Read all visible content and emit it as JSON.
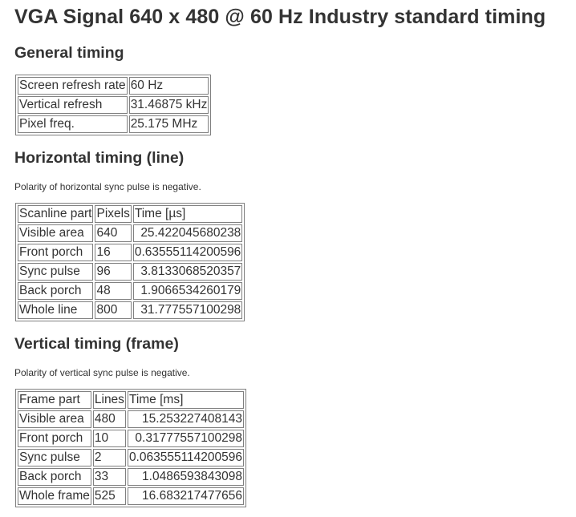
{
  "title": "VGA Signal 640 x 480 @ 60 Hz Industry standard timing",
  "general": {
    "heading": "General timing",
    "rows": [
      {
        "label": "Screen refresh rate",
        "value": "60 Hz"
      },
      {
        "label": "Vertical refresh",
        "value": "31.46875 kHz"
      },
      {
        "label": "Pixel freq.",
        "value": "25.175 MHz"
      }
    ]
  },
  "horizontal": {
    "heading": "Horizontal timing (line)",
    "note": "Polarity of horizontal sync pulse is negative.",
    "headers": [
      "Scanline part",
      "Pixels",
      "Time [µs]"
    ],
    "rows": [
      {
        "part": "Visible area",
        "count": "640",
        "time": "25.422045680238"
      },
      {
        "part": "Front porch",
        "count": "16",
        "time": "0.63555114200596"
      },
      {
        "part": "Sync pulse",
        "count": "96",
        "time": "3.8133068520357"
      },
      {
        "part": "Back porch",
        "count": "48",
        "time": "1.9066534260179"
      },
      {
        "part": "Whole line",
        "count": "800",
        "time": "31.777557100298"
      }
    ]
  },
  "vertical": {
    "heading": "Vertical timing (frame)",
    "note": "Polarity of vertical sync pulse is negative.",
    "headers": [
      "Frame part",
      "Lines",
      "Time [ms]"
    ],
    "rows": [
      {
        "part": "Visible area",
        "count": "480",
        "time": "15.253227408143"
      },
      {
        "part": "Front porch",
        "count": "10",
        "time": "0.31777557100298"
      },
      {
        "part": "Sync pulse",
        "count": "2",
        "time": "0.063555114200596"
      },
      {
        "part": "Back porch",
        "count": "33",
        "time": "1.0486593843098"
      },
      {
        "part": "Whole frame",
        "count": "525",
        "time": "16.683217477656"
      }
    ]
  }
}
